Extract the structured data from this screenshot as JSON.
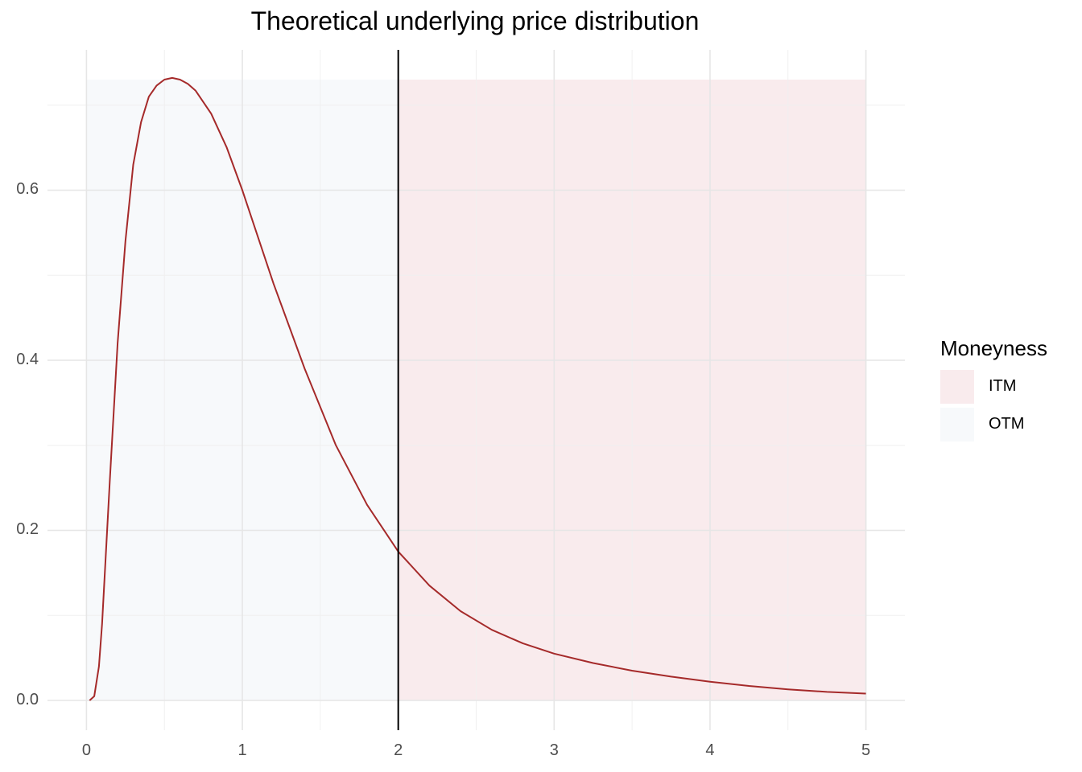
{
  "chart_data": {
    "type": "area",
    "title": "Theoretical underlying price distribution",
    "xlabel": "",
    "ylabel": "",
    "xlim": [
      -0.25,
      5.25
    ],
    "ylim": [
      -0.035,
      0.765
    ],
    "x_ticks": [
      "0",
      "1",
      "2",
      "3",
      "4",
      "5"
    ],
    "y_ticks": [
      "0.0",
      "0.2",
      "0.4",
      "0.6"
    ],
    "grid": true,
    "vertical_line": {
      "x": 2
    },
    "regions": [
      {
        "name": "OTM",
        "x": [
          0,
          2
        ],
        "ymax": 0.73,
        "color": "#f7f9fb"
      },
      {
        "name": "ITM",
        "x": [
          2,
          5
        ],
        "ymax": 0.73,
        "color": "#f9ebed"
      }
    ],
    "legend": {
      "title": "Moneyness",
      "position": "right",
      "items": [
        {
          "label": "ITM",
          "color": "#f9ebed"
        },
        {
          "label": "OTM",
          "color": "#f7f9fb"
        }
      ]
    },
    "series": [
      {
        "color": "#a52a2a",
        "x": [
          0.02,
          0.05,
          0.08,
          0.1,
          0.15,
          0.2,
          0.25,
          0.3,
          0.35,
          0.4,
          0.45,
          0.5,
          0.55,
          0.6,
          0.65,
          0.7,
          0.8,
          0.9,
          1.0,
          1.2,
          1.4,
          1.6,
          1.8,
          2.0,
          2.2,
          2.4,
          2.6,
          2.8,
          3.0,
          3.25,
          3.5,
          3.75,
          4.0,
          4.25,
          4.5,
          4.75,
          5.0
        ],
        "y": [
          0.0,
          0.005,
          0.04,
          0.09,
          0.26,
          0.42,
          0.54,
          0.63,
          0.68,
          0.71,
          0.723,
          0.73,
          0.732,
          0.73,
          0.725,
          0.717,
          0.69,
          0.65,
          0.6,
          0.49,
          0.39,
          0.3,
          0.23,
          0.175,
          0.135,
          0.105,
          0.083,
          0.067,
          0.055,
          0.044,
          0.035,
          0.028,
          0.022,
          0.017,
          0.013,
          0.01,
          0.008
        ]
      }
    ]
  }
}
